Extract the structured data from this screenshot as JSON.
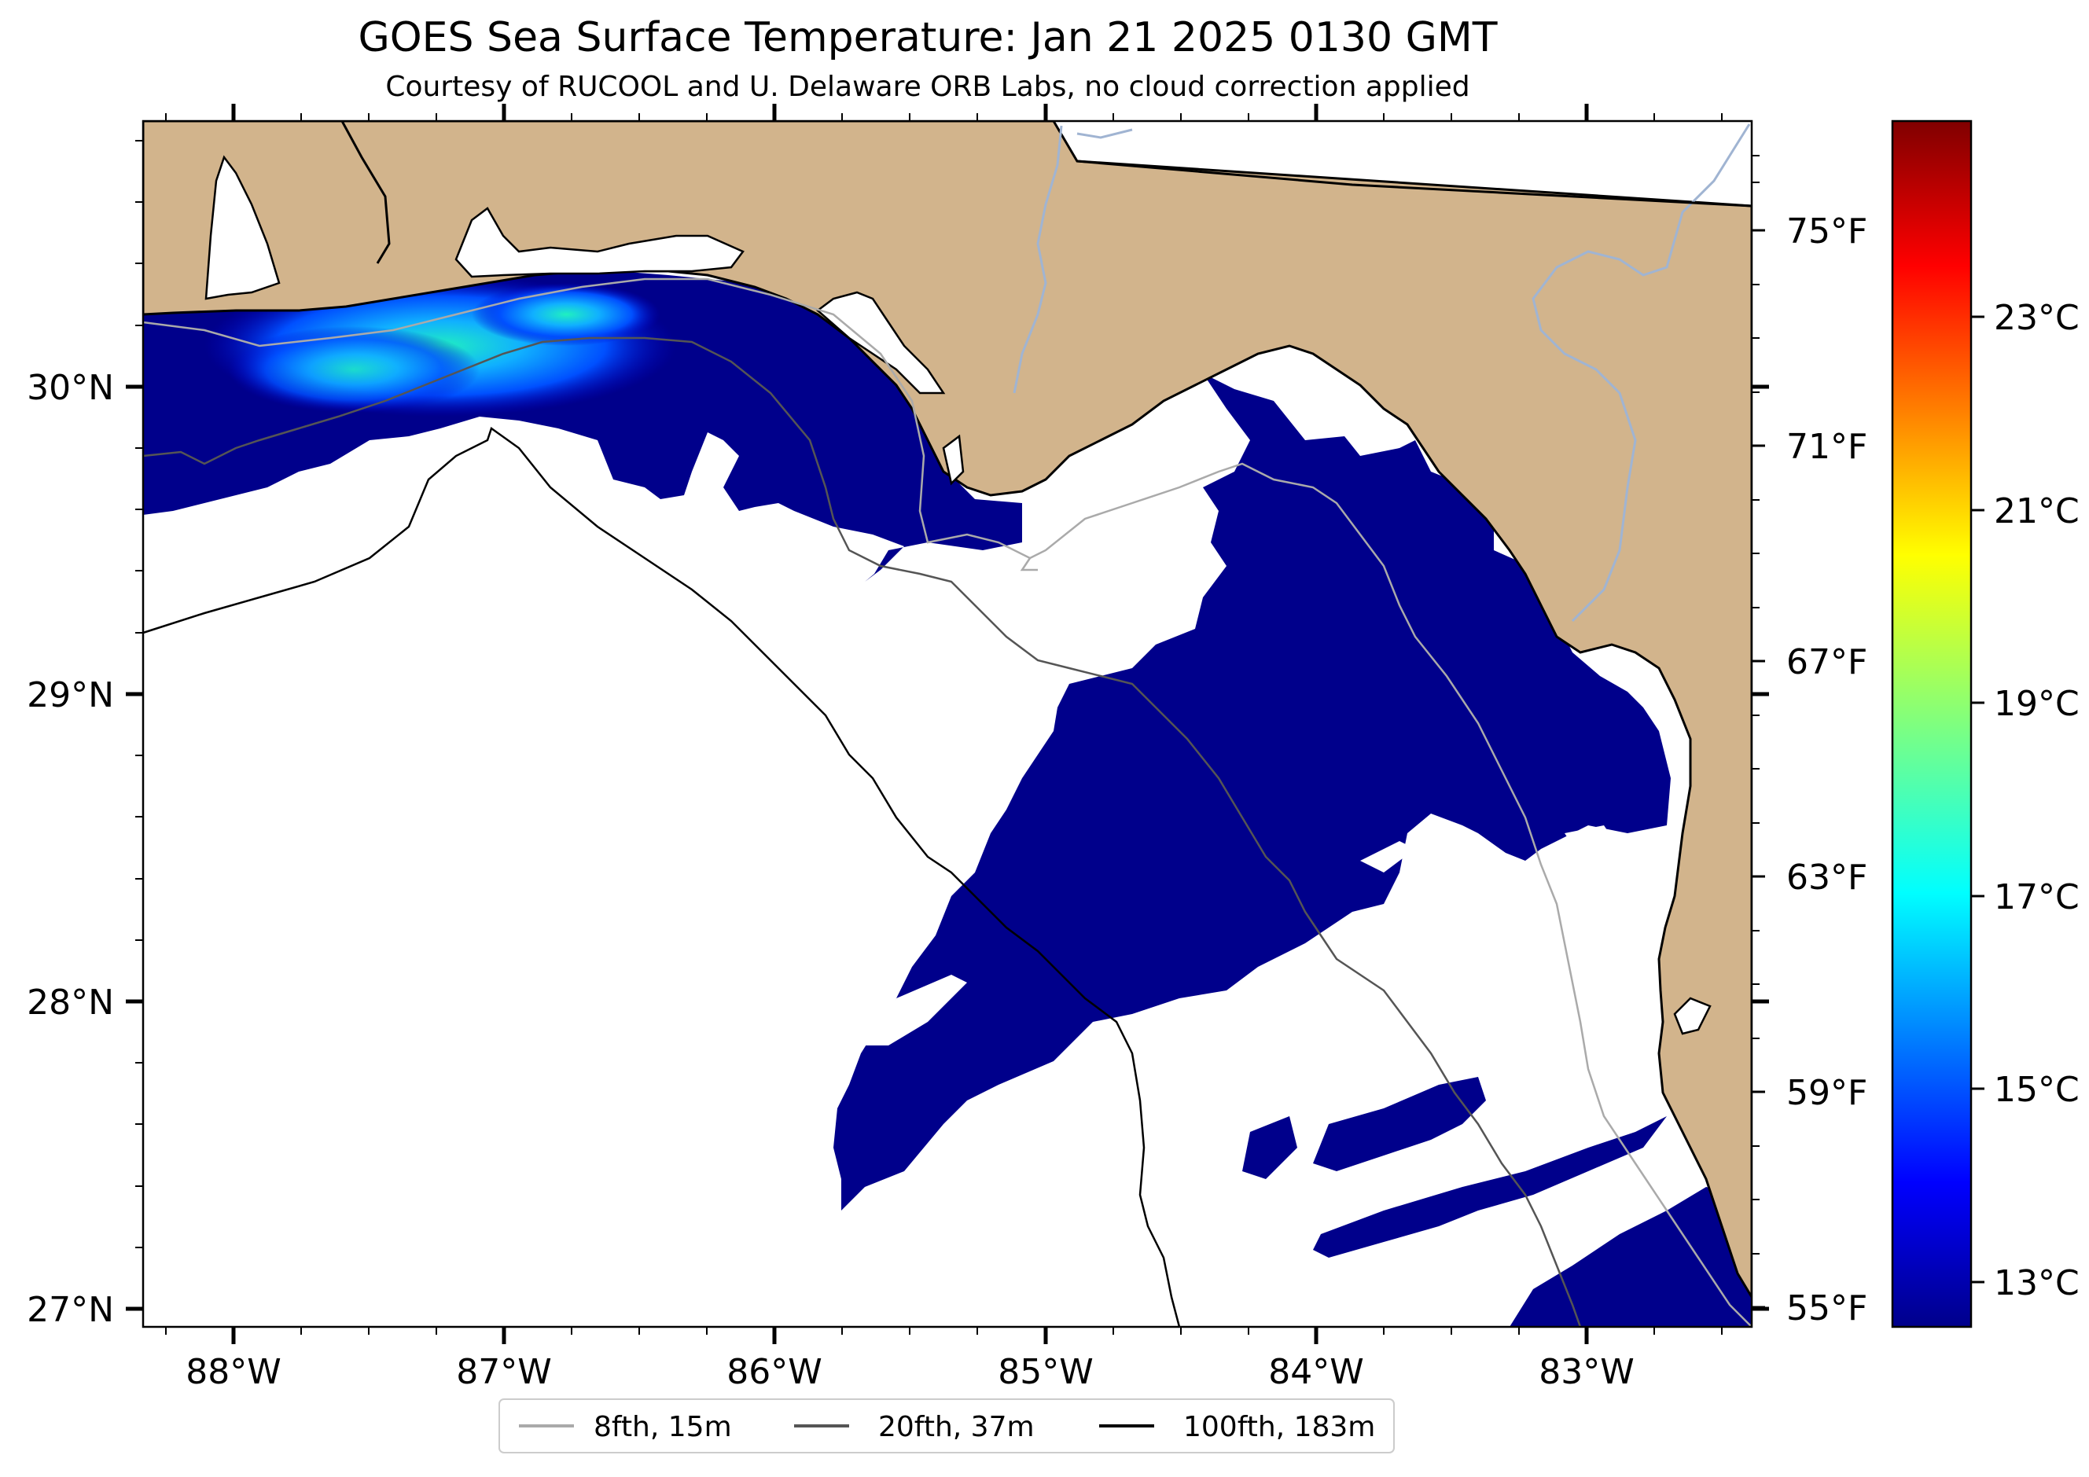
{
  "title": "GOES Sea Surface Temperature: Jan 21 2025 0130 GMT",
  "subtitle": "Courtesy of RUCOOL and U. Delaware ORB Labs, no cloud correction applied",
  "map": {
    "lon_range": [
      -88.33,
      -82.38
    ],
    "lat_range": [
      26.93,
      30.85
    ],
    "lon_ticks": [
      {
        "value": -88,
        "label": "88°W"
      },
      {
        "value": -87,
        "label": "87°W"
      },
      {
        "value": -86,
        "label": "86°W"
      },
      {
        "value": -85,
        "label": "85°W"
      },
      {
        "value": -84,
        "label": "84°W"
      },
      {
        "value": -83,
        "label": "83°W"
      }
    ],
    "lat_ticks": [
      {
        "value": 30,
        "label": "30°N"
      },
      {
        "value": 29,
        "label": "29°N"
      },
      {
        "value": 28,
        "label": "28°N"
      },
      {
        "value": 27,
        "label": "27°N"
      }
    ],
    "colors": {
      "land": "#d2b48c",
      "cold_water": "#00008b",
      "no_data": "#ffffff",
      "river": "#a0b4d2"
    }
  },
  "fahrenheit_ticks": [
    {
      "value": 75,
      "label": "75°F"
    },
    {
      "value": 71,
      "label": "71°F"
    },
    {
      "value": 67,
      "label": "67°F"
    },
    {
      "value": 63,
      "label": "63°F"
    },
    {
      "value": 59,
      "label": "59°F"
    },
    {
      "value": 55,
      "label": "55°F"
    }
  ],
  "colorbar": {
    "colormap": "jet",
    "range_c": [
      12.3,
      24.8
    ],
    "ticks": [
      {
        "value": 23,
        "label": "23°C"
      },
      {
        "value": 21,
        "label": "21°C"
      },
      {
        "value": 19,
        "label": "19°C"
      },
      {
        "value": 17,
        "label": "17°C"
      },
      {
        "value": 15,
        "label": "15°C"
      },
      {
        "value": 13,
        "label": "13°C"
      }
    ]
  },
  "legend": [
    {
      "label": "8fth, 15m",
      "color": "#aaaaaa"
    },
    {
      "label": "20fth, 37m",
      "color": "#555555"
    },
    {
      "label": "100fth, 183m",
      "color": "#000000"
    }
  ]
}
